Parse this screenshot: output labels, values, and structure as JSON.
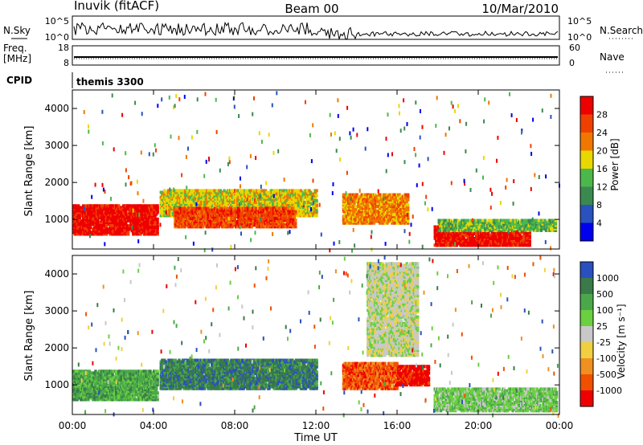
{
  "header": {
    "station": "Inuvik (fitACF)",
    "beam": "Beam 00",
    "date": "10/Mar/2010"
  },
  "noise_panel": {
    "left_label": "N.Sky",
    "right_label": "N.Search",
    "left_ticks": [
      "10^5",
      "10^0"
    ],
    "right_ticks": [
      "10^5",
      "10^0"
    ]
  },
  "freq_panel": {
    "left_label_1": "Freq.",
    "left_label_2": "[MHz]",
    "right_label": "Nave",
    "left_ticks": [
      "18",
      "8"
    ],
    "right_ticks": [
      "60",
      "0"
    ]
  },
  "cpid_panel": {
    "label": "CPID",
    "value": "themis 3300"
  },
  "chart_data": [
    {
      "type": "heatmap",
      "ylabel": "Slant Range [km]",
      "yticks": [
        "4000",
        "3000",
        "2000",
        "1000"
      ],
      "ylim": [
        200,
        4500
      ],
      "xlim_hours": [
        0,
        24
      ],
      "colorbar_label": "Power [dB]",
      "colorbar_ticks": [
        "28",
        "24",
        "20",
        "16",
        "12",
        "8",
        "4"
      ],
      "colorbar_colors": [
        "#0000ee",
        "#2a52be",
        "#3a8a50",
        "#4cb84c",
        "#e8d800",
        "#f07800",
        "#f04000",
        "#ee0000"
      ],
      "regions": [
        {
          "t0": 0.0,
          "t1": 4.2,
          "r0": 600,
          "r1": 1400,
          "level": 7
        },
        {
          "t0": 4.3,
          "t1": 12.0,
          "r0": 1100,
          "r1": 1800,
          "level": 4
        },
        {
          "t0": 5.0,
          "t1": 11.0,
          "r0": 800,
          "r1": 1300,
          "level": 6
        },
        {
          "t0": 13.3,
          "t1": 16.5,
          "r0": 900,
          "r1": 1700,
          "level": 5
        },
        {
          "t0": 17.8,
          "t1": 22.5,
          "r0": 300,
          "r1": 800,
          "level": 7
        },
        {
          "t0": 18.0,
          "t1": 23.8,
          "r0": 700,
          "r1": 1000,
          "level": 3
        }
      ]
    },
    {
      "type": "heatmap",
      "ylabel": "Slant Range [km]",
      "yticks": [
        "4000",
        "3000",
        "2000",
        "1000"
      ],
      "ylim": [
        200,
        4500
      ],
      "xlim_hours": [
        0,
        24
      ],
      "colorbar_label": "Velocity [m s⁻¹]",
      "colorbar_ticks": [
        "1000",
        "500",
        "100",
        "25",
        "-25",
        "-100",
        "-500",
        "-1000"
      ],
      "colorbar_colors": [
        "#2a4fbf",
        "#3a7a4a",
        "#4aa84a",
        "#6ad040",
        "#c8c8c8",
        "#f0d040",
        "#f09020",
        "#f05000",
        "#ee0000"
      ],
      "regions": [
        {
          "t0": 0.0,
          "t1": 4.2,
          "r0": 600,
          "r1": 1400,
          "level": 2
        },
        {
          "t0": 4.3,
          "t1": 12.0,
          "r0": 900,
          "r1": 1700,
          "level": 1
        },
        {
          "t0": 13.3,
          "t1": 16.0,
          "r0": 900,
          "r1": 1600,
          "level": 7
        },
        {
          "t0": 16.0,
          "t1": 17.5,
          "r0": 1000,
          "r1": 1500,
          "level": 8
        },
        {
          "t0": 17.8,
          "t1": 23.8,
          "r0": 300,
          "r1": 900,
          "level": 3
        },
        {
          "t0": 14.5,
          "t1": 17.0,
          "r0": 1800,
          "r1": 4300,
          "level": 4
        }
      ]
    }
  ],
  "x_axis": {
    "label": "Time UT",
    "ticks": [
      "00:00",
      "04:00",
      "08:00",
      "12:00",
      "16:00",
      "20:00",
      "00:00"
    ]
  },
  "colors": {
    "line": "#000000"
  }
}
